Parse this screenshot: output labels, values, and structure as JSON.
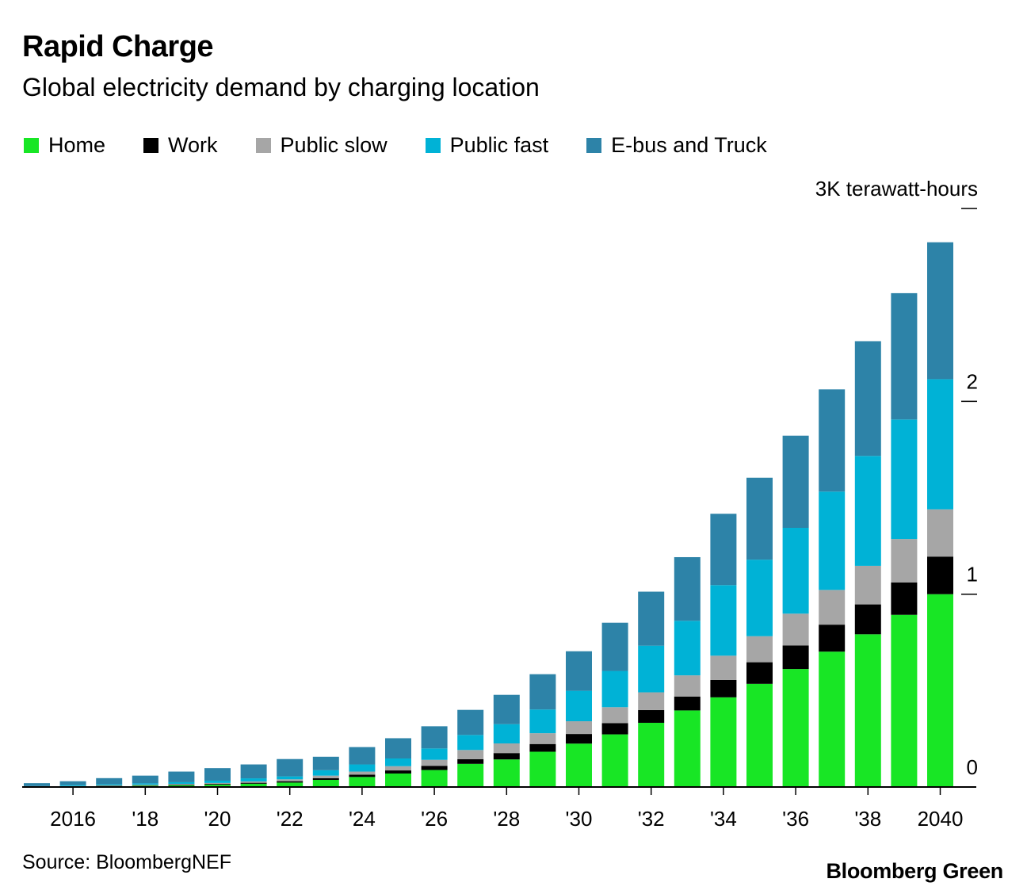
{
  "header": {
    "title": "Rapid Charge",
    "subtitle": "Global electricity demand by charging location"
  },
  "legend": [
    {
      "label": "Home",
      "color": "#18e625"
    },
    {
      "label": "Work",
      "color": "#000000"
    },
    {
      "label": "Public slow",
      "color": "#a6a6a6"
    },
    {
      "label": "Public fast",
      "color": "#00b2d6"
    },
    {
      "label": "E-bus and Truck",
      "color": "#2d83a8"
    }
  ],
  "footer": {
    "source": "Source: BloombergNEF",
    "brand": "Bloomberg Green"
  },
  "chart_data": {
    "type": "bar",
    "stacked": true,
    "title": "Rapid Charge",
    "subtitle": "Global electricity demand by charging location",
    "unit_label": "3K terawatt-hours",
    "ylim": [
      0,
      3000
    ],
    "y_ticks": [
      {
        "value": 0,
        "label": "0"
      },
      {
        "value": 1000,
        "label": "1"
      },
      {
        "value": 2000,
        "label": "2"
      },
      {
        "value": 3000,
        "label": "3K terawatt-hours"
      }
    ],
    "categories": [
      "2015",
      "2016",
      "2017",
      "2018",
      "2019",
      "2020",
      "2021",
      "2022",
      "2023",
      "2024",
      "2025",
      "2026",
      "2027",
      "2028",
      "2029",
      "2030",
      "2031",
      "2032",
      "2033",
      "2034",
      "2035",
      "2036",
      "2037",
      "2038",
      "2039",
      "2040"
    ],
    "x_tick_labels": [
      {
        "category": "2016",
        "label": "2016"
      },
      {
        "category": "2018",
        "label": "'18"
      },
      {
        "category": "2020",
        "label": "'20"
      },
      {
        "category": "2022",
        "label": "'22"
      },
      {
        "category": "2024",
        "label": "'24"
      },
      {
        "category": "2026",
        "label": "'26"
      },
      {
        "category": "2028",
        "label": "'28"
      },
      {
        "category": "2030",
        "label": "'30"
      },
      {
        "category": "2032",
        "label": "'32"
      },
      {
        "category": "2034",
        "label": "'34"
      },
      {
        "category": "2036",
        "label": "'36"
      },
      {
        "category": "2038",
        "label": "'38"
      },
      {
        "category": "2040",
        "label": "2040"
      }
    ],
    "series": [
      {
        "name": "Home",
        "color": "#18e625",
        "values": [
          2,
          3,
          5,
          7,
          9,
          12,
          17,
          23,
          37,
          52,
          70,
          88,
          120,
          143,
          183,
          225,
          273,
          333,
          397,
          465,
          535,
          612,
          702,
          792,
          893,
          1000
        ]
      },
      {
        "name": "Work",
        "color": "#000000",
        "values": [
          0,
          1,
          2,
          2,
          3,
          4,
          5,
          7,
          9,
          12,
          16,
          22,
          24,
          33,
          40,
          50,
          58,
          66,
          72,
          90,
          112,
          122,
          140,
          155,
          168,
          195
        ]
      },
      {
        "name": "Public slow",
        "color": "#a6a6a6",
        "values": [
          0,
          1,
          2,
          3,
          4,
          5,
          7,
          10,
          13,
          16,
          22,
          31,
          48,
          50,
          56,
          66,
          83,
          92,
          110,
          126,
          135,
          165,
          180,
          200,
          225,
          245
        ]
      },
      {
        "name": "Public fast",
        "color": "#00b2d6",
        "values": [
          3,
          5,
          5,
          7,
          9,
          12,
          16,
          15,
          28,
          37,
          40,
          59,
          78,
          100,
          123,
          158,
          188,
          242,
          283,
          366,
          397,
          445,
          510,
          570,
          620,
          675
        ]
      },
      {
        "name": "E-bus and Truck",
        "color": "#2d83a8",
        "values": [
          15,
          20,
          32,
          40,
          55,
          65,
          72,
          90,
          70,
          90,
          105,
          115,
          130,
          152,
          183,
          205,
          250,
          280,
          330,
          370,
          425,
          478,
          530,
          595,
          655,
          710
        ]
      }
    ]
  }
}
